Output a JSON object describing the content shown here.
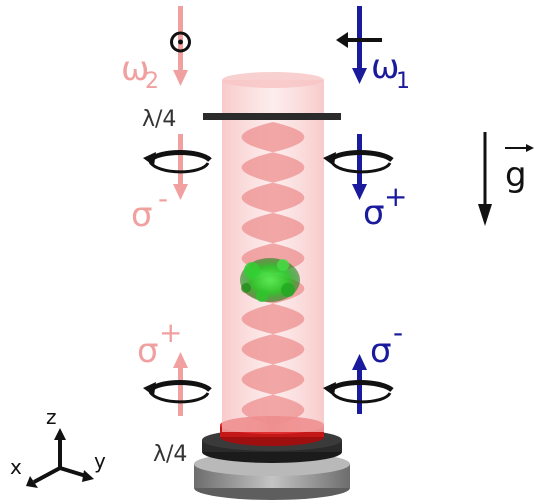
{
  "labels": {
    "omega2": "ω",
    "omega2_sub": "2",
    "omega1": "ω",
    "omega1_sub": "1",
    "lambda_top": "λ/4",
    "lambda_bottom": "λ/4",
    "sigma_minus_left": "σ",
    "sigma_minus_left_sup": "-",
    "sigma_plus_right": "σ",
    "sigma_plus_right_sup": "+",
    "sigma_plus_left": "σ",
    "sigma_plus_left_sup": "+",
    "sigma_minus_right": "σ",
    "sigma_minus_right_sup": "-",
    "gravity": "g",
    "axis_x": "x",
    "axis_y": "y",
    "axis_z": "z"
  },
  "colors": {
    "beam_pink": "#f4a0a0",
    "beam_blue": "#1a1a9c",
    "column": "#f7c8c8",
    "standing_wave": "#ee8f8f",
    "atoms": "#22c422",
    "plate": "#2a2a2a",
    "mirror": "#cc1a1a",
    "base": "#8f8f8f"
  }
}
